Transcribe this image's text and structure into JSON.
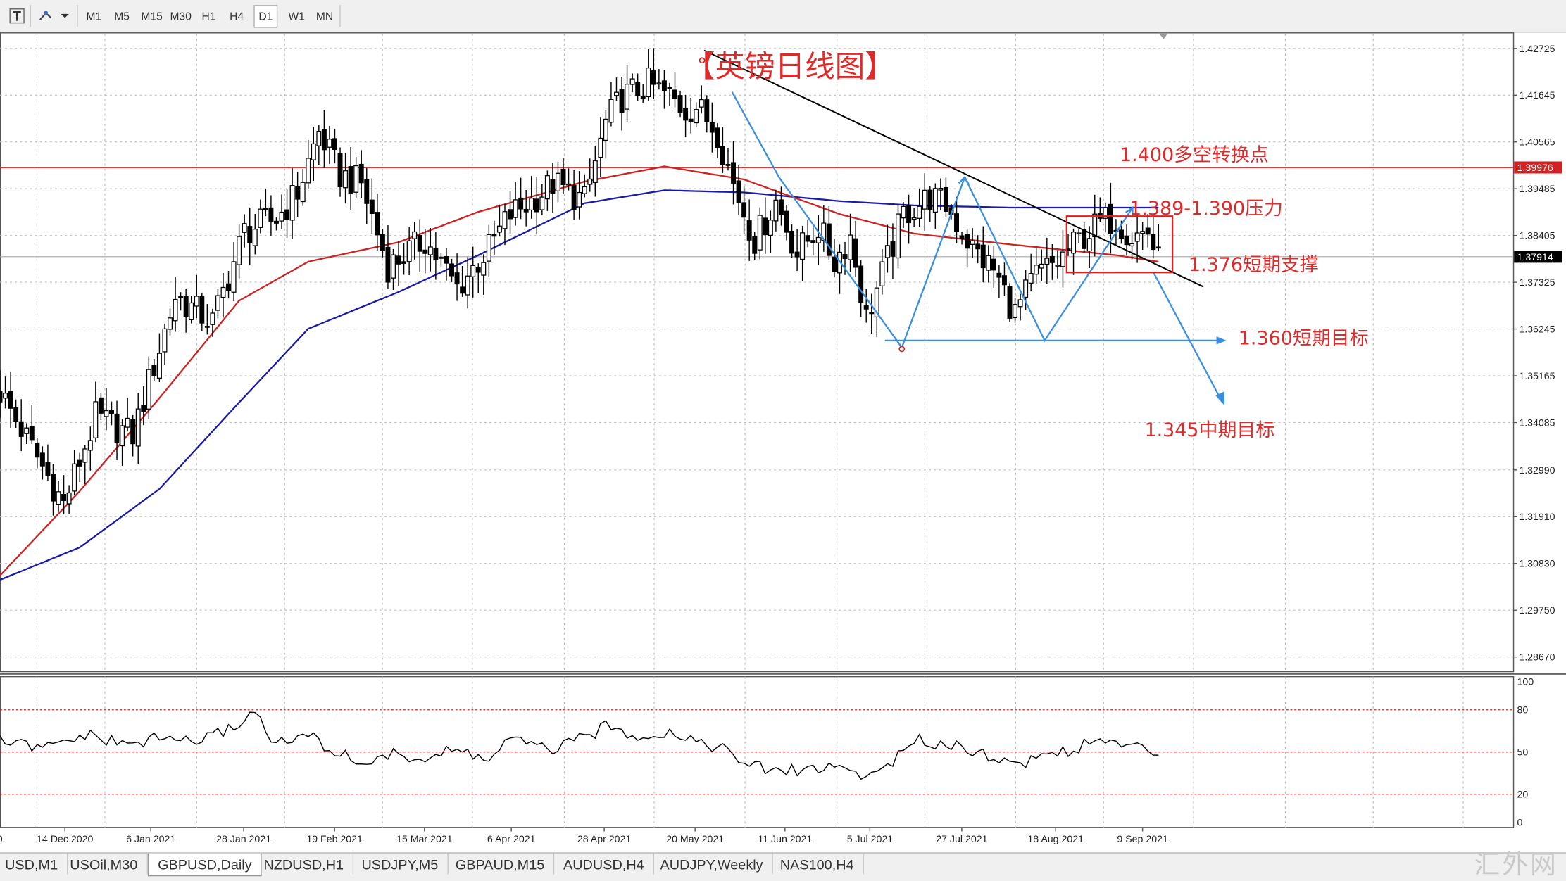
{
  "toolbar": {
    "timeframes": [
      "M1",
      "M5",
      "M15",
      "M30",
      "H1",
      "H4",
      "D1",
      "W1",
      "MN"
    ],
    "active": "D1"
  },
  "tabs": [
    "USD,M1",
    "USOil,M30",
    "GBPUSD,Daily",
    "NZDUSD,H1",
    "USDJPY,M5",
    "GBPAUD,M15",
    "AUDUSD,H4",
    "AUDJPY,Weekly",
    "NAS100,H4"
  ],
  "active_tab": "GBPUSD,Daily",
  "watermark": "汇外网",
  "chart_data": [
    {
      "type": "candlestick",
      "title": "【英镑日线图】",
      "x_labels": [
        "14 Dec 2020",
        "6 Jan 2021",
        "28 Jan 2021",
        "19 Feb 2021",
        "15 Mar 2021",
        "6 Apr 2021",
        "28 Apr 2021",
        "20 May 2021",
        "11 Jun 2021",
        "5 Jul 2021",
        "27 Jul 2021",
        "18 Aug 2021",
        "9 Sep 2021"
      ],
      "y_ticks": [
        1.42725,
        1.41645,
        1.40565,
        1.39485,
        1.38405,
        1.37325,
        1.36245,
        1.35165,
        1.34085,
        1.3299,
        1.3191,
        1.3083,
        1.2975,
        1.2867
      ],
      "ylim": [
        1.2833,
        1.4306
      ],
      "current_price": 1.37914,
      "hline_price": 1.39976,
      "colors": {
        "hline": "#d42020",
        "ma_fast": "#cc2222",
        "ma_slow": "#1a1aa8",
        "trend": "#000000",
        "pattern": "#3a8ee0",
        "text": "#e02a2a",
        "candle": "#000000"
      },
      "ohlc_anchors": [
        [
          0,
          1.348
        ],
        [
          12,
          1.322
        ],
        [
          18,
          1.342
        ],
        [
          25,
          1.338
        ],
        [
          33,
          1.37
        ],
        [
          40,
          1.364
        ],
        [
          46,
          1.385
        ],
        [
          52,
          1.388
        ],
        [
          56,
          1.394
        ],
        [
          60,
          1.408
        ],
        [
          64,
          1.398
        ],
        [
          68,
          1.396
        ],
        [
          73,
          1.377
        ],
        [
          80,
          1.383
        ],
        [
          86,
          1.372
        ],
        [
          92,
          1.381
        ],
        [
          96,
          1.389
        ],
        [
          100,
          1.392
        ],
        [
          104,
          1.396
        ],
        [
          110,
          1.392
        ],
        [
          114,
          1.41
        ],
        [
          117,
          1.416
        ],
        [
          122,
          1.419
        ],
        [
          126,
          1.416
        ],
        [
          129,
          1.413
        ],
        [
          131,
          1.414
        ],
        [
          135,
          1.408
        ],
        [
          138,
          1.396
        ],
        [
          142,
          1.383
        ],
        [
          146,
          1.392
        ],
        [
          150,
          1.38
        ],
        [
          154,
          1.386
        ],
        [
          157,
          1.378
        ],
        [
          160,
          1.384
        ],
        [
          163,
          1.365
        ],
        [
          166,
          1.375
        ],
        [
          170,
          1.389
        ],
        [
          175,
          1.393
        ],
        [
          178,
          1.391
        ],
        [
          183,
          1.381
        ],
        [
          187,
          1.376
        ],
        [
          191,
          1.366
        ],
        [
          195,
          1.375
        ],
        [
          199,
          1.378
        ],
        [
          203,
          1.383
        ],
        [
          207,
          1.387
        ],
        [
          210,
          1.388
        ],
        [
          213,
          1.384
        ],
        [
          216,
          1.385
        ],
        [
          218,
          1.378
        ]
      ],
      "ma_fast_anchors": [
        [
          0,
          1.3055
        ],
        [
          15,
          1.325
        ],
        [
          30,
          1.3465
        ],
        [
          45,
          1.369
        ],
        [
          58,
          1.378
        ],
        [
          75,
          1.3825
        ],
        [
          90,
          1.3895
        ],
        [
          110,
          1.3965
        ],
        [
          125,
          1.4
        ],
        [
          140,
          1.397
        ],
        [
          158,
          1.389
        ],
        [
          172,
          1.3845
        ],
        [
          190,
          1.382
        ],
        [
          210,
          1.3795
        ],
        [
          218,
          1.378
        ]
      ],
      "ma_slow_anchors": [
        [
          0,
          1.3045
        ],
        [
          15,
          1.312
        ],
        [
          30,
          1.3255
        ],
        [
          45,
          1.3455
        ],
        [
          58,
          1.3625
        ],
        [
          75,
          1.371
        ],
        [
          90,
          1.3795
        ],
        [
          110,
          1.3915
        ],
        [
          125,
          1.3945
        ],
        [
          140,
          1.394
        ],
        [
          158,
          1.392
        ],
        [
          172,
          1.391
        ],
        [
          190,
          1.3905
        ],
        [
          210,
          1.3905
        ],
        [
          218,
          1.3905
        ]
      ],
      "rsi_anchors": [
        [
          0,
          58
        ],
        [
          8,
          52
        ],
        [
          16,
          62
        ],
        [
          24,
          55
        ],
        [
          30,
          60
        ],
        [
          38,
          58
        ],
        [
          44,
          68
        ],
        [
          48,
          79
        ],
        [
          52,
          55
        ],
        [
          58,
          62
        ],
        [
          62,
          52
        ],
        [
          68,
          42
        ],
        [
          74,
          48
        ],
        [
          80,
          45
        ],
        [
          86,
          52
        ],
        [
          92,
          44
        ],
        [
          96,
          60
        ],
        [
          100,
          54
        ],
        [
          104,
          52
        ],
        [
          110,
          60
        ],
        [
          114,
          68
        ],
        [
          120,
          62
        ],
        [
          126,
          64
        ],
        [
          130,
          60
        ],
        [
          136,
          52
        ],
        [
          140,
          42
        ],
        [
          146,
          36
        ],
        [
          152,
          38
        ],
        [
          158,
          40
        ],
        [
          163,
          32
        ],
        [
          168,
          44
        ],
        [
          173,
          58
        ],
        [
          180,
          55
        ],
        [
          186,
          48
        ],
        [
          191,
          40
        ],
        [
          196,
          48
        ],
        [
          202,
          52
        ],
        [
          207,
          59
        ],
        [
          212,
          54
        ],
        [
          218,
          50
        ]
      ],
      "rsi_ticks": [
        100,
        80,
        50,
        20,
        0
      ],
      "rsi_dotted_levels": [
        80,
        50,
        20
      ],
      "annotations": [
        {
          "text": "1.400多空转换点",
          "price": 1.4028
        },
        {
          "text": "1.389-1.390压力",
          "price": 1.3905
        },
        {
          "text": "1.376短期支撑",
          "price": 1.3775
        },
        {
          "text": "1.360短期目标",
          "price": 1.3605
        },
        {
          "text": "1.345中期目标",
          "price": 1.3393
        }
      ],
      "levels": {
        "box_top": 1.3885,
        "box_bottom": 1.3755,
        "neckline": 1.3598,
        "pattern_low": 1.3583
      }
    }
  ]
}
